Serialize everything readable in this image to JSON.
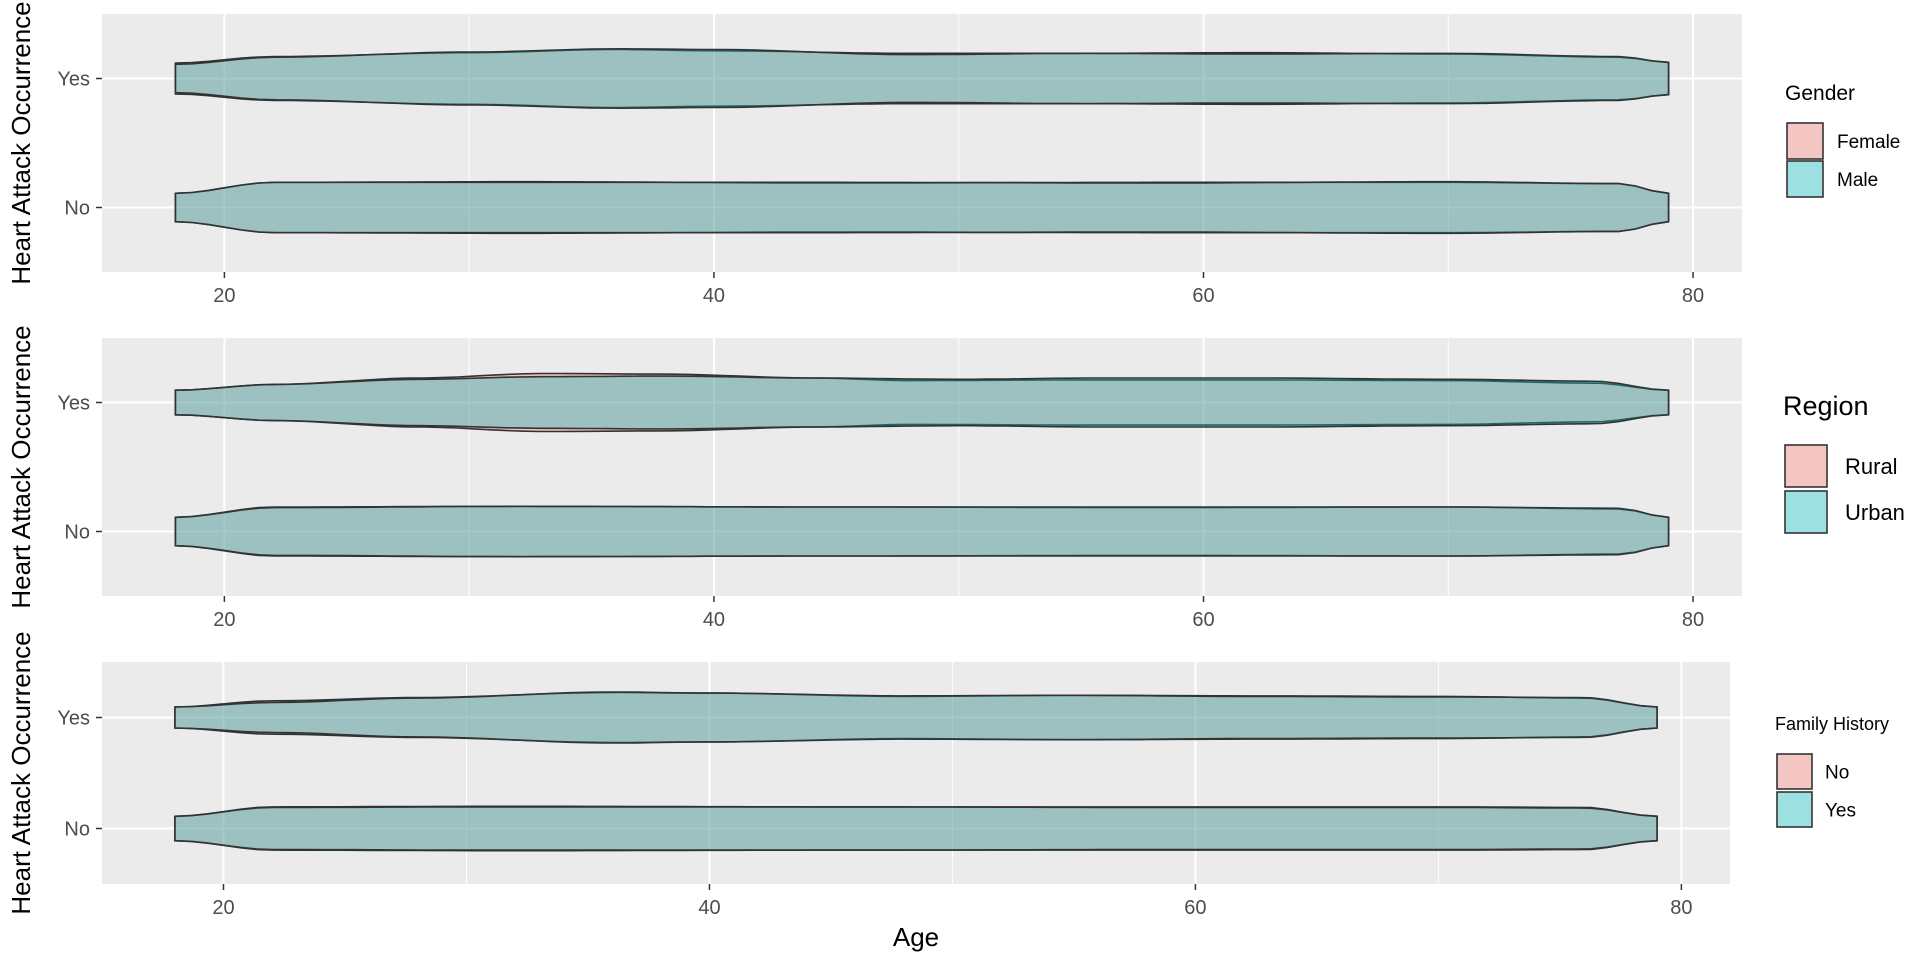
{
  "chart_data": [
    {
      "type": "violin",
      "ylabel": "Heart Attack Occurrence",
      "xlabel": "",
      "x_ticks": [
        20,
        40,
        60,
        80
      ],
      "xlim": [
        15,
        82
      ],
      "y_categories": [
        "No",
        "Yes"
      ],
      "legend": {
        "title": "Gender",
        "position": "right",
        "title_size": "medium",
        "entries": [
          "Female",
          "Male"
        ]
      },
      "fill_colors": [
        "#F8766D",
        "#00BFC4"
      ],
      "fill_opacity": 0.35,
      "series": [
        {
          "name": "Female",
          "Yes": {
            "min": 18,
            "max": 79,
            "half_width_profile": [
              [
                18,
                0.24
              ],
              [
                22,
                0.34
              ],
              [
                30,
                0.4
              ],
              [
                36,
                0.45
              ],
              [
                40,
                0.43
              ],
              [
                48,
                0.39
              ],
              [
                55,
                0.39
              ],
              [
                62,
                0.4
              ],
              [
                70,
                0.38
              ],
              [
                77,
                0.33
              ],
              [
                79,
                0.25
              ]
            ]
          },
          "No": {
            "min": 18,
            "max": 79,
            "half_width_profile": [
              [
                18,
                0.22
              ],
              [
                22,
                0.39
              ],
              [
                32,
                0.4
              ],
              [
                45,
                0.38
              ],
              [
                58,
                0.39
              ],
              [
                70,
                0.39
              ],
              [
                77,
                0.37
              ],
              [
                79,
                0.22
              ]
            ]
          }
        },
        {
          "name": "Male",
          "Yes": {
            "min": 18,
            "max": 79,
            "half_width_profile": [
              [
                18,
                0.22
              ],
              [
                22,
                0.33
              ],
              [
                30,
                0.41
              ],
              [
                36,
                0.46
              ],
              [
                40,
                0.45
              ],
              [
                48,
                0.37
              ],
              [
                55,
                0.39
              ],
              [
                62,
                0.38
              ],
              [
                70,
                0.39
              ],
              [
                77,
                0.34
              ],
              [
                79,
                0.25
              ]
            ]
          },
          "No": {
            "min": 18,
            "max": 79,
            "half_width_profile": [
              [
                18,
                0.22
              ],
              [
                22,
                0.39
              ],
              [
                32,
                0.39
              ],
              [
                45,
                0.39
              ],
              [
                58,
                0.38
              ],
              [
                70,
                0.4
              ],
              [
                77,
                0.37
              ],
              [
                79,
                0.22
              ]
            ]
          }
        }
      ]
    },
    {
      "type": "violin",
      "ylabel": "Heart Attack Occurrence",
      "xlabel": "",
      "x_ticks": [
        20,
        40,
        60,
        80
      ],
      "xlim": [
        15,
        82
      ],
      "y_categories": [
        "No",
        "Yes"
      ],
      "legend": {
        "title": "Region",
        "position": "right",
        "title_size": "large",
        "entries": [
          "Rural",
          "Urban"
        ]
      },
      "fill_colors": [
        "#F8766D",
        "#00BFC4"
      ],
      "fill_opacity": 0.35,
      "series": [
        {
          "name": "Rural",
          "Yes": {
            "min": 18,
            "max": 79,
            "half_width_profile": [
              [
                18,
                0.19
              ],
              [
                22,
                0.28
              ],
              [
                28,
                0.38
              ],
              [
                33,
                0.45
              ],
              [
                38,
                0.44
              ],
              [
                44,
                0.38
              ],
              [
                48,
                0.34
              ],
              [
                55,
                0.35
              ],
              [
                62,
                0.35
              ],
              [
                70,
                0.34
              ],
              [
                76,
                0.3
              ],
              [
                79,
                0.19
              ]
            ]
          },
          "No": {
            "min": 18,
            "max": 79,
            "half_width_profile": [
              [
                18,
                0.22
              ],
              [
                22,
                0.38
              ],
              [
                32,
                0.39
              ],
              [
                45,
                0.38
              ],
              [
                58,
                0.37
              ],
              [
                70,
                0.38
              ],
              [
                77,
                0.35
              ],
              [
                79,
                0.22
              ]
            ]
          }
        },
        {
          "name": "Urban",
          "Yes": {
            "min": 18,
            "max": 79,
            "half_width_profile": [
              [
                18,
                0.19
              ],
              [
                22,
                0.28
              ],
              [
                28,
                0.36
              ],
              [
                33,
                0.4
              ],
              [
                38,
                0.41
              ],
              [
                44,
                0.38
              ],
              [
                50,
                0.36
              ],
              [
                56,
                0.38
              ],
              [
                62,
                0.38
              ],
              [
                70,
                0.36
              ],
              [
                76,
                0.33
              ],
              [
                79,
                0.19
              ]
            ]
          },
          "No": {
            "min": 18,
            "max": 79,
            "half_width_profile": [
              [
                18,
                0.22
              ],
              [
                22,
                0.37
              ],
              [
                32,
                0.39
              ],
              [
                45,
                0.38
              ],
              [
                58,
                0.38
              ],
              [
                70,
                0.38
              ],
              [
                77,
                0.36
              ],
              [
                79,
                0.22
              ]
            ]
          }
        }
      ]
    },
    {
      "type": "violin",
      "ylabel": "Heart Attack Occurrence",
      "xlabel": "Age",
      "x_ticks": [
        20,
        40,
        60,
        80
      ],
      "xlim": [
        15,
        82
      ],
      "y_categories": [
        "No",
        "Yes"
      ],
      "legend": {
        "title": "Family History",
        "position": "right",
        "title_size": "small",
        "entries": [
          "No",
          "Yes"
        ]
      },
      "fill_colors": [
        "#F8766D",
        "#00BFC4"
      ],
      "fill_opacity": 0.35,
      "series": [
        {
          "name": "No",
          "Yes": {
            "min": 18,
            "max": 79,
            "half_width_profile": [
              [
                18,
                0.19
              ],
              [
                22,
                0.3
              ],
              [
                28,
                0.36
              ],
              [
                36,
                0.45
              ],
              [
                40,
                0.44
              ],
              [
                48,
                0.38
              ],
              [
                55,
                0.4
              ],
              [
                62,
                0.39
              ],
              [
                70,
                0.38
              ],
              [
                76,
                0.35
              ],
              [
                79,
                0.19
              ]
            ]
          },
          "No": {
            "min": 18,
            "max": 79,
            "half_width_profile": [
              [
                18,
                0.22
              ],
              [
                22,
                0.39
              ],
              [
                32,
                0.4
              ],
              [
                45,
                0.39
              ],
              [
                58,
                0.39
              ],
              [
                70,
                0.39
              ],
              [
                76,
                0.38
              ],
              [
                79,
                0.22
              ]
            ]
          }
        },
        {
          "name": "Yes",
          "Yes": {
            "min": 18,
            "max": 79,
            "half_width_profile": [
              [
                18,
                0.19
              ],
              [
                22,
                0.27
              ],
              [
                28,
                0.35
              ],
              [
                36,
                0.46
              ],
              [
                40,
                0.44
              ],
              [
                48,
                0.39
              ],
              [
                55,
                0.4
              ],
              [
                62,
                0.38
              ],
              [
                70,
                0.37
              ],
              [
                76,
                0.36
              ],
              [
                79,
                0.19
              ]
            ]
          },
          "No": {
            "min": 18,
            "max": 79,
            "half_width_profile": [
              [
                18,
                0.22
              ],
              [
                22,
                0.38
              ],
              [
                32,
                0.39
              ],
              [
                45,
                0.39
              ],
              [
                58,
                0.38
              ],
              [
                70,
                0.38
              ],
              [
                76,
                0.37
              ],
              [
                79,
                0.22
              ]
            ]
          }
        }
      ]
    }
  ]
}
